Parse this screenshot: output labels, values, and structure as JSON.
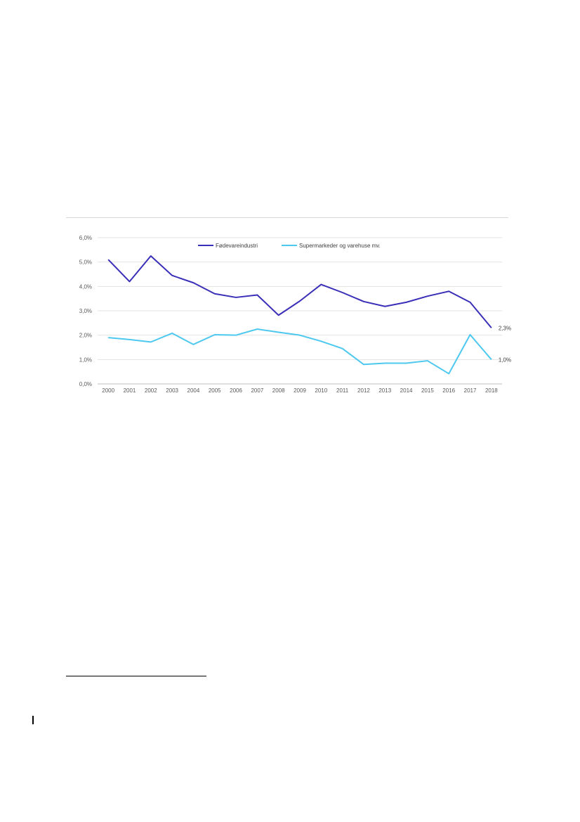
{
  "chart_data": {
    "type": "line",
    "categories": [
      "2000",
      "2001",
      "2002",
      "2003",
      "2004",
      "2005",
      "2006",
      "2007",
      "2008",
      "2009",
      "2010",
      "2011",
      "2012",
      "2013",
      "2014",
      "2015",
      "2016",
      "2017",
      "2018"
    ],
    "y_ticks": [
      "0,0%",
      "1,0%",
      "2,0%",
      "3,0%",
      "4,0%",
      "5,0%",
      "6,0%"
    ],
    "ylim": [
      0,
      6
    ],
    "grid": true,
    "legend_position": "top",
    "series": [
      {
        "name": "Fødevareindustri",
        "color": "#3a2fb8",
        "values": [
          5.1,
          4.2,
          5.25,
          4.45,
          4.15,
          3.7,
          3.55,
          3.65,
          2.82,
          3.4,
          4.08,
          3.75,
          3.38,
          3.18,
          3.35,
          3.6,
          3.8,
          3.35,
          2.3
        ],
        "end_label": "2,3%"
      },
      {
        "name": "Supermarkeder og varehuse mv.",
        "color": "#4dc8ef",
        "values": [
          1.9,
          1.82,
          1.72,
          2.08,
          1.62,
          2.02,
          2.0,
          2.25,
          2.12,
          2.0,
          1.75,
          1.45,
          0.8,
          0.85,
          0.85,
          0.95,
          0.42,
          2.02,
          1.0
        ],
        "end_label": "1,0%"
      }
    ]
  }
}
